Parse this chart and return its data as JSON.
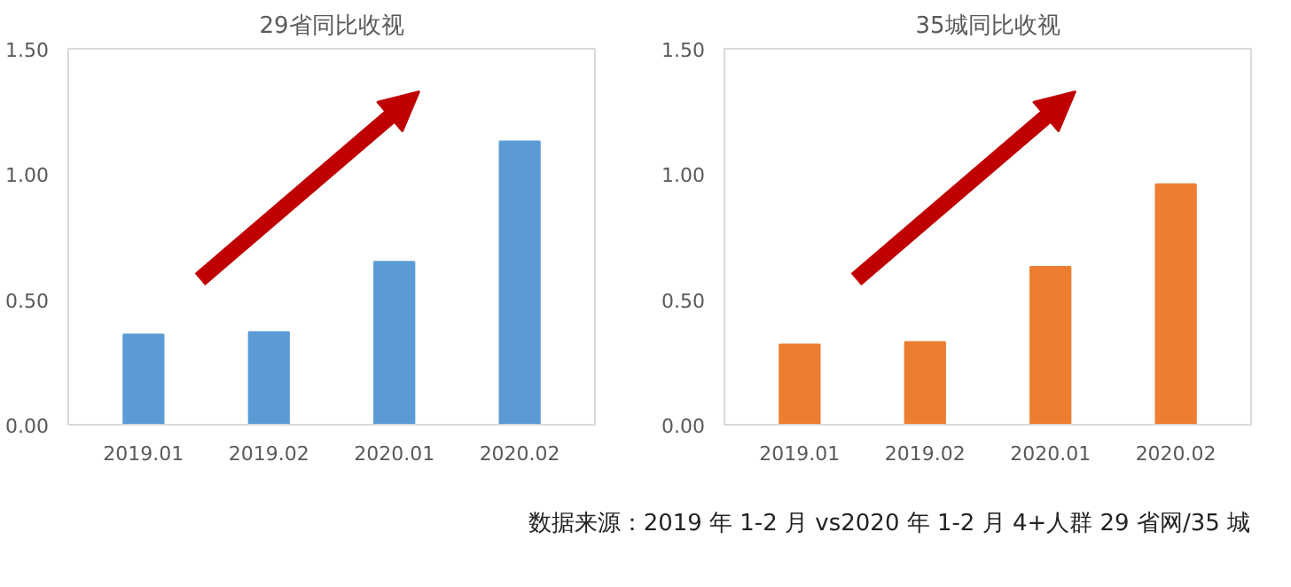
{
  "chart_data": [
    {
      "type": "bar",
      "title": "29省同比收视",
      "categories": [
        "2019.01",
        "2019.02",
        "2020.01",
        "2020.02"
      ],
      "values": [
        0.36,
        0.37,
        0.65,
        1.13
      ],
      "color": "#5b9bd5",
      "ylim": [
        0,
        1.5
      ],
      "yticks": [
        {
          "value": 0,
          "label": "0.00"
        },
        {
          "value": 0.5,
          "label": "0.50"
        },
        {
          "value": 1,
          "label": "1.00"
        },
        {
          "value": 1.5,
          "label": "1.50"
        }
      ]
    },
    {
      "type": "bar",
      "title": "35城同比收视",
      "categories": [
        "2019.01",
        "2019.02",
        "2020.01",
        "2020.02"
      ],
      "values": [
        0.32,
        0.33,
        0.63,
        0.96
      ],
      "color": "#ed7d31",
      "ylim": [
        0,
        1.5
      ],
      "yticks": [
        {
          "value": 0,
          "label": "0.00"
        },
        {
          "value": 0.5,
          "label": "0.50"
        },
        {
          "value": 1,
          "label": "1.00"
        },
        {
          "value": 1.5,
          "label": "1.50"
        }
      ],
      "annotations": [
        "数据来源：2019 年 1-2 月 vs2020 年 1-2 月 4+人群 29 省网/35 城"
      ]
    }
  ]
}
